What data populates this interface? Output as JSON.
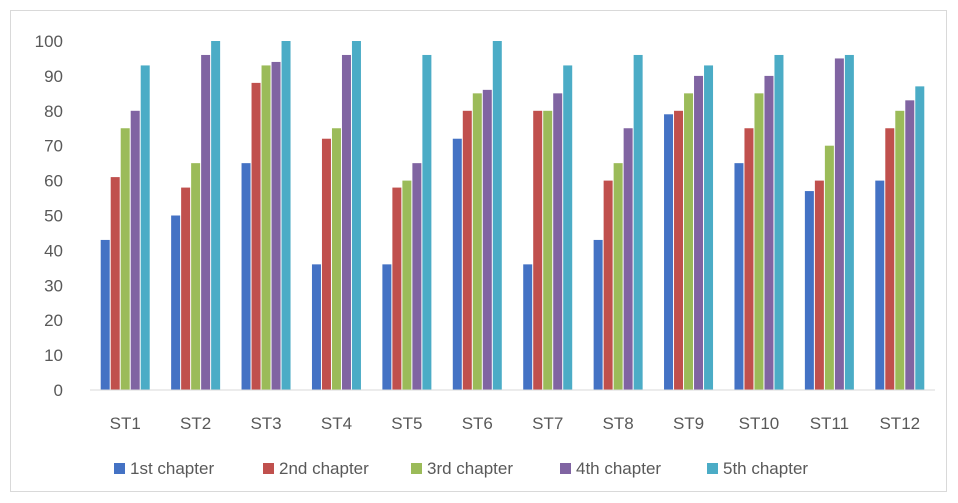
{
  "chart_data": {
    "type": "bar",
    "title": "",
    "xlabel": "",
    "ylabel": "",
    "ylim": [
      0,
      100
    ],
    "yticks": [
      0,
      10,
      20,
      30,
      40,
      50,
      60,
      70,
      80,
      90,
      100
    ],
    "grid": false,
    "legend_position": "bottom",
    "categories": [
      "ST1",
      "ST2",
      "ST3",
      "ST4",
      "ST5",
      "ST6",
      "ST7",
      "ST8",
      "ST9",
      "ST10",
      "ST11",
      "ST12"
    ],
    "series": [
      {
        "name": "1st chapter",
        "color": "#4472c4",
        "values": [
          43,
          50,
          65,
          36,
          36,
          72,
          36,
          43,
          79,
          65,
          57,
          60
        ]
      },
      {
        "name": "2nd chapter",
        "color": "#c0504d",
        "values": [
          61,
          58,
          88,
          72,
          58,
          80,
          80,
          60,
          80,
          75,
          60,
          75
        ]
      },
      {
        "name": "3rd chapter",
        "color": "#9bbb59",
        "values": [
          75,
          65,
          93,
          75,
          60,
          85,
          80,
          65,
          85,
          85,
          70,
          80
        ]
      },
      {
        "name": "4th chapter",
        "color": "#8064a2",
        "values": [
          80,
          96,
          94,
          96,
          65,
          86,
          85,
          75,
          90,
          90,
          95,
          83
        ]
      },
      {
        "name": "5th chapter",
        "color": "#4bacc6",
        "values": [
          93,
          100,
          100,
          100,
          96,
          100,
          93,
          96,
          93,
          96,
          96,
          87
        ]
      }
    ]
  }
}
